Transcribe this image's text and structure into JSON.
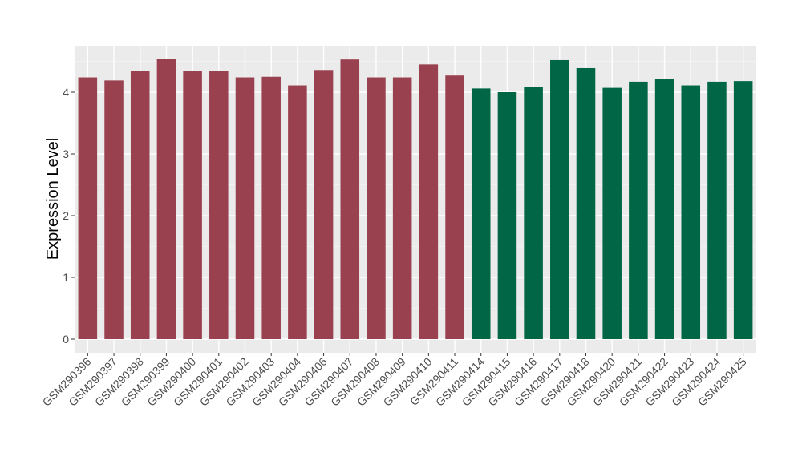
{
  "chart_data": {
    "type": "bar",
    "title": "",
    "xlabel": "",
    "ylabel": "Expression Level",
    "ylim": [
      -0.2,
      4.75
    ],
    "yticks": [
      0,
      1,
      2,
      3,
      4
    ],
    "grid": true,
    "categories": [
      "GSM290396",
      "GSM290397",
      "GSM290398",
      "GSM290399",
      "GSM290400",
      "GSM290401",
      "GSM290402",
      "GSM290403",
      "GSM290404",
      "GSM290406",
      "GSM290407",
      "GSM290408",
      "GSM290409",
      "GSM290410",
      "GSM290411",
      "GSM290414",
      "GSM290415",
      "GSM290416",
      "GSM290417",
      "GSM290418",
      "GSM290420",
      "GSM290421",
      "GSM290422",
      "GSM290423",
      "GSM290424",
      "GSM290425"
    ],
    "values": [
      4.24,
      4.19,
      4.35,
      4.54,
      4.35,
      4.35,
      4.24,
      4.25,
      4.11,
      4.36,
      4.53,
      4.24,
      4.24,
      4.45,
      4.27,
      4.06,
      4.0,
      4.09,
      4.52,
      4.39,
      4.07,
      4.17,
      4.22,
      4.11,
      4.17,
      4.18
    ],
    "groups": [
      0,
      0,
      0,
      0,
      0,
      0,
      0,
      0,
      0,
      0,
      0,
      0,
      0,
      0,
      0,
      1,
      1,
      1,
      1,
      1,
      1,
      1,
      1,
      1,
      1,
      1
    ],
    "colors": [
      "#9a4150",
      "#006645"
    ]
  }
}
